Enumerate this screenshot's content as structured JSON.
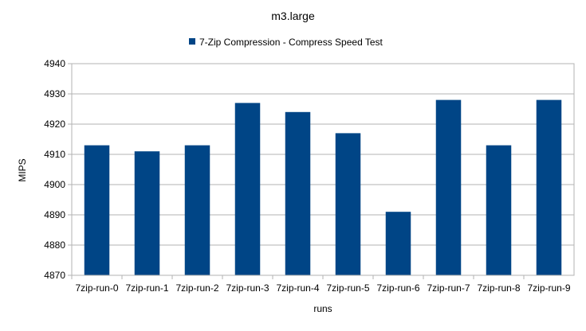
{
  "chart_data": {
    "type": "bar",
    "title": "m3.large",
    "xlabel": "runs",
    "ylabel": "MIPS",
    "categories": [
      "7zip-run-0",
      "7zip-run-1",
      "7zip-run-2",
      "7zip-run-3",
      "7zip-run-4",
      "7zip-run-5",
      "7zip-run-6",
      "7zip-run-7",
      "7zip-run-8",
      "7zip-run-9"
    ],
    "series": [
      {
        "name": "7-Zip Compression - Compress Speed Test",
        "color": "#004586",
        "values": [
          4913,
          4911,
          4913,
          4927,
          4924,
          4917,
          4891,
          4928,
          4913,
          4928
        ]
      }
    ],
    "ylim": [
      4870,
      4940
    ],
    "yticks": [
      4870,
      4880,
      4890,
      4900,
      4910,
      4920,
      4930,
      4940
    ],
    "grid": true,
    "legend_position": "top-center"
  }
}
